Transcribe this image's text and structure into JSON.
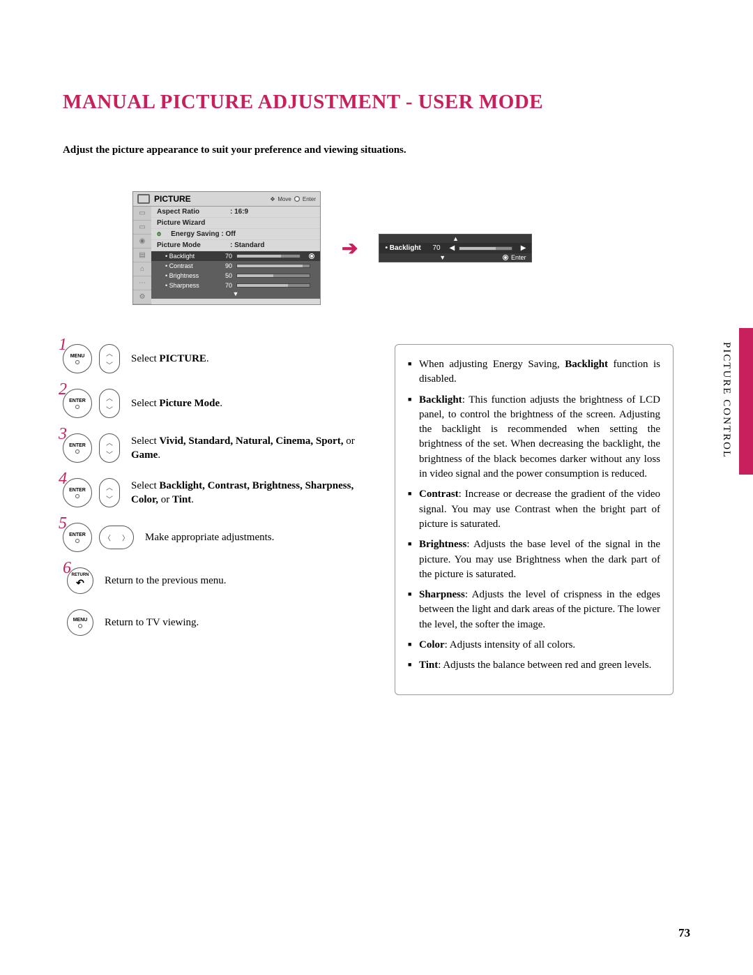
{
  "page": {
    "title": "MANUAL PICTURE ADJUSTMENT - USER MODE",
    "intro": "Adjust the picture appearance to suit your preference and viewing situations.",
    "section_label": "PICTURE CONTROL",
    "page_number": "73",
    "title_color": "#c8205c",
    "accent_color": "#c8205c"
  },
  "osd": {
    "header_title": "PICTURE",
    "header_move": "Move",
    "header_enter": "Enter",
    "items": [
      {
        "label": "Aspect Ratio",
        "value": ": 16:9"
      },
      {
        "label": "Picture Wizard",
        "value": ""
      },
      {
        "label": "Energy Saving : Off",
        "value": "",
        "eco": true
      },
      {
        "label": "Picture Mode",
        "value": ": Standard"
      }
    ],
    "subs": [
      {
        "name": "• Backlight",
        "value": 70,
        "selected": true
      },
      {
        "name": "• Contrast",
        "value": 90
      },
      {
        "name": "• Brightness",
        "value": 50
      },
      {
        "name": "• Sharpness",
        "value": 70
      }
    ],
    "popup": {
      "name": "• Backlight",
      "value": 70,
      "enter_label": "Enter"
    },
    "colors": {
      "panel_bg": "#cfcfcf",
      "header_bg": "#d6d6d6",
      "list_bg": "#d9d9d9",
      "sub_bg": "#5e5e5e",
      "sub_sel_bg": "#3a3a3a",
      "popup_bg": "#3a3a3a"
    }
  },
  "steps": [
    {
      "num": "1",
      "btn1": "MENU",
      "btn2": "updown",
      "text_pre": "Select ",
      "bold": "PICTURE",
      "text_post": "."
    },
    {
      "num": "2",
      "btn1": "ENTER",
      "btn2": "updown",
      "text_pre": "Select ",
      "bold": "Picture Mode",
      "text_post": "."
    },
    {
      "num": "3",
      "btn1": "ENTER",
      "btn2": "updown",
      "text_pre": "Select ",
      "bold": "Vivid, Standard, Natural, Cinema, Sport,",
      "mid": " or ",
      "bold2": "Game",
      "text_post": "."
    },
    {
      "num": "4",
      "btn1": "ENTER",
      "btn2": "updown",
      "text_pre": "Select ",
      "bold": "Backlight, Contrast, Brightness, Sharpness, Color,",
      "mid": " or ",
      "bold2": "Tint",
      "text_post": "."
    },
    {
      "num": "5",
      "btn1": "ENTER",
      "btn2": "leftright",
      "text_pre": "Make appropriate adjustments.",
      "bold": "",
      "text_post": ""
    },
    {
      "num": "6",
      "btn1": "RETURN",
      "text_pre": "Return to the previous menu.",
      "bold": "",
      "text_post": ""
    },
    {
      "btn1": "MENU_SMALL",
      "text_pre": "Return to TV viewing.",
      "bold": "",
      "text_post": ""
    }
  ],
  "info": [
    {
      "pre": "When adjusting Energy Saving, ",
      "b": "Backlight",
      "post": " function is disabled."
    },
    {
      "b": "Backlight",
      "post": ": This function adjusts the brightness of LCD panel, to control the brightness of the screen. Adjusting the backlight is recommended when setting the brightness of the set. When decreasing the backlight, the brightness of the black becomes darker without any loss in video signal and the power consumption is reduced."
    },
    {
      "b": "Contrast",
      "post": ": Increase or decrease the gradient of the video signal. You may use Contrast when the bright part of picture is saturated."
    },
    {
      "b": "Brightness",
      "post": ": Adjusts the base level of the signal in the picture. You may use Brightness when the dark part of the picture is saturated."
    },
    {
      "b": "Sharpness",
      "post": ": Adjusts the level of crispness in the edges between the light and dark areas of the picture. The lower the level, the softer the image."
    },
    {
      "b": "Color",
      "post": ": Adjusts intensity of all colors."
    },
    {
      "b": "Tint",
      "post": ": Adjusts the balance between red and green levels."
    }
  ]
}
